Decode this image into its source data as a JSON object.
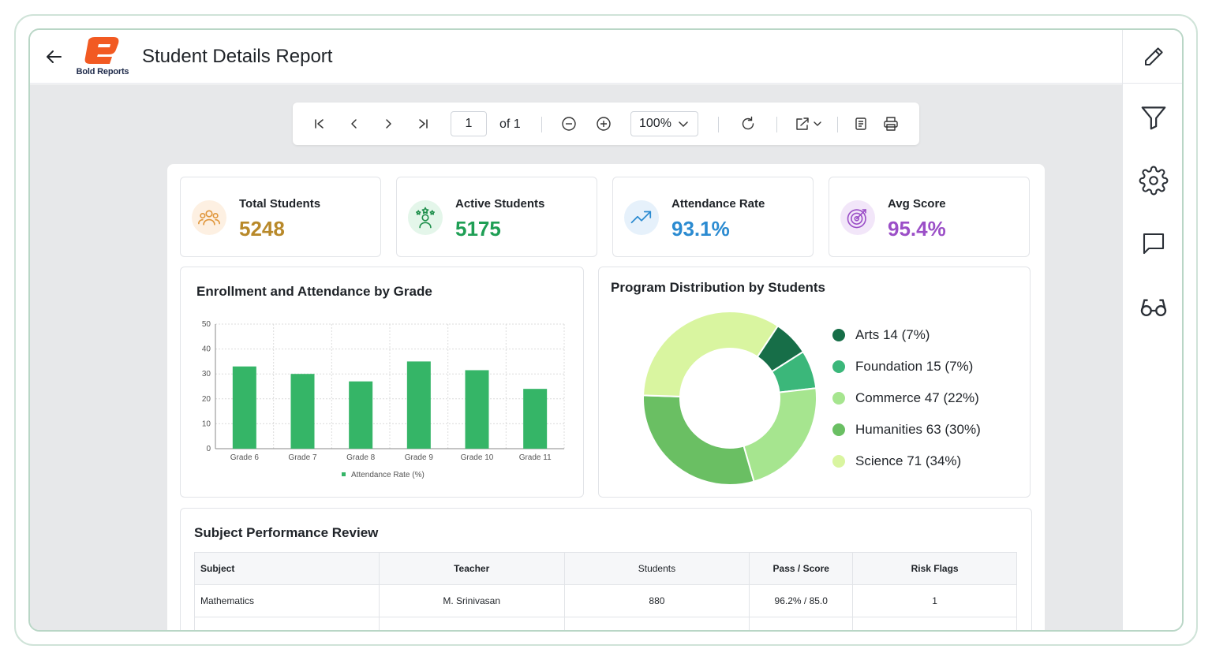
{
  "header": {
    "title": "Student Details Report",
    "logo_text": "Bold Reports"
  },
  "toolbar": {
    "page_value": "1",
    "page_of": "of 1",
    "zoom": "100%"
  },
  "kpis": [
    {
      "label": "Total Students",
      "value": "5248",
      "color": "#b8892a",
      "icon": "users-icon"
    },
    {
      "label": "Active Students",
      "value": "5175",
      "color": "#1f9f55",
      "icon": "star-person-icon"
    },
    {
      "label": "Attendance Rate",
      "value": "93.1%",
      "color": "#2b8bd1",
      "icon": "trend-up-icon"
    },
    {
      "label": "Avg Score",
      "value": "95.4%",
      "color": "#9b4fc7",
      "icon": "target-icon"
    }
  ],
  "bar_chart": {
    "title": "Enrollment and Attendance by Grade",
    "legend": "Attendance Rate (%)"
  },
  "donut_chart": {
    "title": "Program Distribution by Students",
    "legend": [
      "Arts 14 (7%)",
      "Foundation 15 (7%)",
      "Commerce 47 (22%)",
      "Humanities 63 (30%)",
      "Science 71 (34%)"
    ]
  },
  "chart_data": [
    {
      "type": "bar",
      "categories": [
        "Grade 6",
        "Grade 7",
        "Grade 8",
        "Grade 9",
        "Grade 10",
        "Grade 11"
      ],
      "series": [
        {
          "name": "Attendance Rate (%)",
          "values": [
            33,
            30,
            27,
            35,
            31.5,
            24
          ]
        }
      ],
      "title": "Enrollment and Attendance by Grade",
      "ylim": [
        0,
        50
      ],
      "yticks": [
        0,
        10,
        20,
        30,
        40,
        50
      ],
      "grid": true,
      "legend_position": "bottom",
      "color": "#35b567"
    },
    {
      "type": "pie",
      "title": "Program Distribution by Students",
      "categories": [
        "Arts",
        "Foundation",
        "Commerce",
        "Humanities",
        "Science"
      ],
      "values": [
        14,
        15,
        47,
        63,
        71
      ],
      "percents": [
        7,
        7,
        22,
        30,
        34
      ],
      "colors": [
        "#176e48",
        "#3bb77a",
        "#a6e58f",
        "#6abf63",
        "#d9f5a0"
      ],
      "donut": true,
      "legend_position": "right"
    }
  ],
  "table": {
    "title": "Subject Performance Review",
    "columns": [
      "Subject",
      "Teacher",
      "Students",
      "Pass / Score",
      "Risk Flags"
    ],
    "rows": [
      [
        "Mathematics",
        "M. Srinivasan",
        "880",
        "96.2% / 85.0",
        "1"
      ]
    ]
  }
}
